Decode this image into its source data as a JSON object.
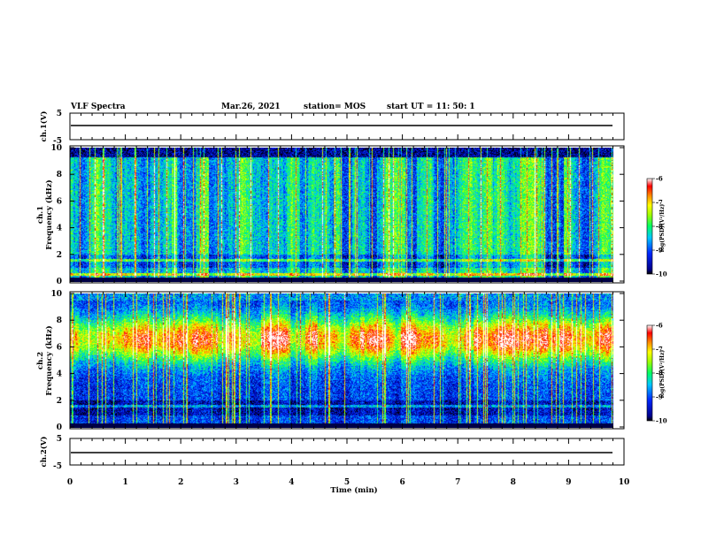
{
  "header": {
    "title": "VLF Spectra",
    "date": "Mar.26, 2021",
    "station": "station= MOS",
    "start": "start UT =   11: 50: 1"
  },
  "chart_data": [
    {
      "type": "line",
      "panel": "ch1-waveform",
      "ylabel": "ch.1(V)",
      "yticks": [
        "5",
        "-5"
      ],
      "ylim": [
        -5,
        5
      ],
      "xlim": [
        0,
        10
      ],
      "series": [
        {
          "x": [
            0,
            9.85
          ],
          "y": [
            0,
            0
          ]
        }
      ]
    },
    {
      "type": "heatmap",
      "panel": "ch1-spectrogram",
      "ylabel_top": "ch.1",
      "ylabel": "Frequency (kHz)",
      "yticks": [
        "0",
        "2",
        "4",
        "6",
        "8",
        "10"
      ],
      "ylim": [
        0,
        10
      ],
      "xlim": [
        0,
        9.85
      ],
      "colorbar": {
        "label": "log(PSD)(V²/Hz)",
        "ticks": [
          "-6",
          "-7",
          "-8",
          "-9",
          "-10"
        ],
        "range": [
          -10,
          -6
        ]
      }
    },
    {
      "type": "heatmap",
      "panel": "ch2-spectrogram",
      "ylabel_top": "ch.2",
      "ylabel": "Frequency (kHz)",
      "yticks": [
        "0",
        "2",
        "4",
        "6",
        "8",
        "10"
      ],
      "ylim": [
        0,
        10
      ],
      "xlim": [
        0,
        9.85
      ],
      "colorbar": {
        "label": "log(PSD)(V²/Hz)",
        "ticks": [
          "-6",
          "-7",
          "-8",
          "-9",
          "-10"
        ],
        "range": [
          -10,
          -6
        ]
      }
    },
    {
      "type": "line",
      "panel": "ch2-waveform",
      "ylabel": "ch.2(V)",
      "yticks": [
        "5",
        "-5"
      ],
      "ylim": [
        -5,
        5
      ],
      "xlim": [
        0,
        10
      ],
      "series": [
        {
          "x": [
            0,
            9.85
          ],
          "y": [
            0,
            0
          ]
        }
      ]
    }
  ],
  "xaxis": {
    "label": "Time (min)",
    "ticks": [
      "0",
      "1",
      "2",
      "3",
      "4",
      "5",
      "6",
      "7",
      "8",
      "9",
      "10"
    ]
  }
}
